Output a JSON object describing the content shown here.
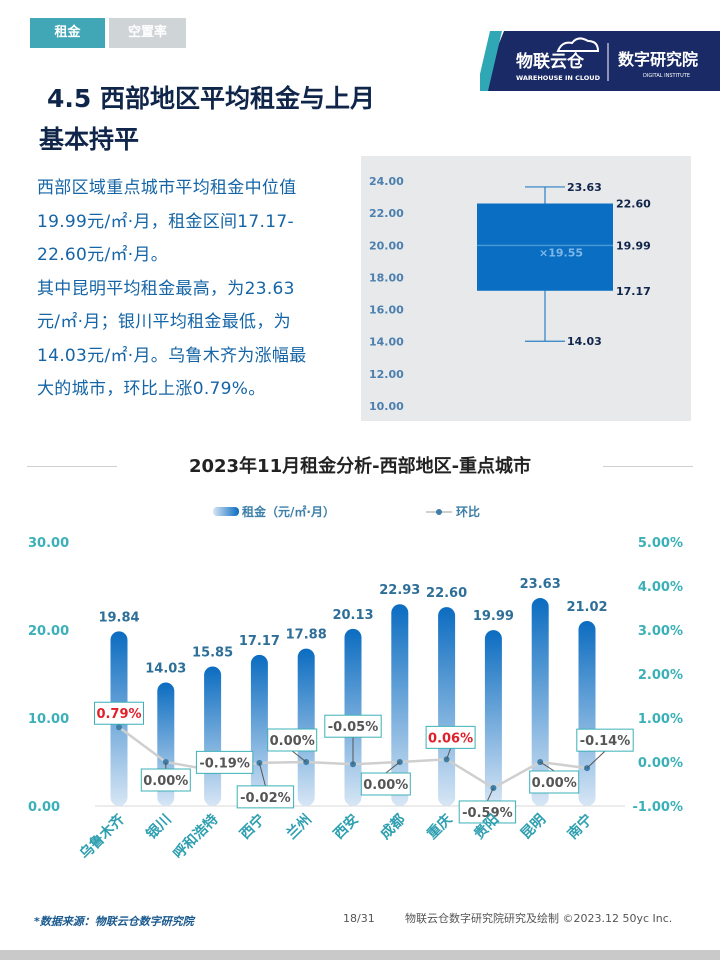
{
  "tabs": [
    {
      "label": "租金"
    },
    {
      "label": "空置率"
    }
  ],
  "logo": {
    "brand_cn": "物联云仓",
    "brand_en": "WAREHOUSE IN CLOUD",
    "institute_cn": "数字研究院",
    "institute_en": "DIGITAL INSTITUTE"
  },
  "heading": {
    "line1": "4.5 西部地区平均租金与上月",
    "line2": "基本持平"
  },
  "paragraph": {
    "line1": "西部区域重点城市平均租金中位值",
    "line2": "19.99元/㎡·月，租金区间17.17-",
    "line3": "22.60元/㎡·月。",
    "line4": "其中昆明平均租金最高，为23.63",
    "line5": "元/㎡·月；银川平均租金最低，为",
    "line6": "14.03元/㎡·月。乌鲁木齐为涨幅最",
    "line7": "大的城市，环比上涨0.79%。"
  },
  "chart_data": [
    {
      "type": "box",
      "y_ticks": [
        "24.00",
        "22.00",
        "20.00",
        "18.00",
        "16.00",
        "14.00",
        "12.00",
        "10.00"
      ],
      "ylim": [
        10,
        24
      ],
      "max": 23.63,
      "q3": 22.6,
      "median": 19.99,
      "mean": 19.55,
      "q1": 17.17,
      "min": 14.03,
      "labels": {
        "max": "23.63",
        "q3": "22.60",
        "median": "19.99",
        "mean": "×19.55",
        "q1": "17.17",
        "min": "14.03"
      },
      "colors": {
        "box": "#0a6fc2",
        "line": "#4a9ad8",
        "whisker": "#2a7fc6"
      }
    },
    {
      "type": "bar+line",
      "title": "2023年11月租金分析-西部地区-重点城市",
      "legend": {
        "bar": "租金（元/㎡·月）",
        "line": "环比"
      },
      "categories": [
        "乌鲁木齐",
        "银川",
        "呼和浩特",
        "西宁",
        "兰州",
        "西安",
        "成都",
        "重庆",
        "贵阳",
        "昆明",
        "南宁"
      ],
      "series": [
        {
          "name": "租金（元/㎡·月）",
          "axis": "left",
          "values": [
            19.84,
            14.03,
            15.85,
            17.17,
            17.88,
            20.13,
            22.93,
            22.6,
            19.99,
            23.63,
            21.02
          ],
          "labels": [
            "19.84",
            "14.03",
            "15.85",
            "17.17",
            "17.88",
            "20.13",
            "22.93",
            "22.60",
            "19.99",
            "23.63",
            "21.02"
          ]
        },
        {
          "name": "环比",
          "axis": "right",
          "values": [
            0.79,
            0.0,
            -0.19,
            -0.02,
            0.0,
            -0.05,
            0.0,
            0.06,
            -0.59,
            0.0,
            -0.14
          ],
          "labels": [
            "0.79%",
            "0.00%",
            "-0.19%",
            "-0.02%",
            "0.00%",
            "-0.05%",
            "0.00%",
            "0.06%",
            "-0.59%",
            "0.00%",
            "-0.14%"
          ]
        }
      ],
      "y_left": {
        "ticks": [
          "30.00",
          "20.00",
          "10.00",
          "0.00"
        ],
        "range": [
          0,
          30
        ]
      },
      "y_right": {
        "ticks": [
          "5.00%",
          "4.00%",
          "3.00%",
          "2.00%",
          "1.00%",
          "0.00%",
          "-1.00%"
        ],
        "range": [
          -1,
          5
        ]
      },
      "highlight": {
        "positive_color": "#e0202a",
        "normal_color": "#555555"
      },
      "colors": {
        "bar_top": "#0b6cc0",
        "bar_bottom": "#d7e6f5",
        "line": "#cfcfcf",
        "marker": "#3d7fa8",
        "axis_text": "#3bb0b8",
        "box_border": "#3bb0b8"
      }
    }
  ],
  "footer": {
    "source": "*数据来源：物联云仓数字研究院",
    "page": "18/31",
    "credit": "物联云仓数字研究院研究及绘制  ©2023.12 50yc Inc."
  }
}
